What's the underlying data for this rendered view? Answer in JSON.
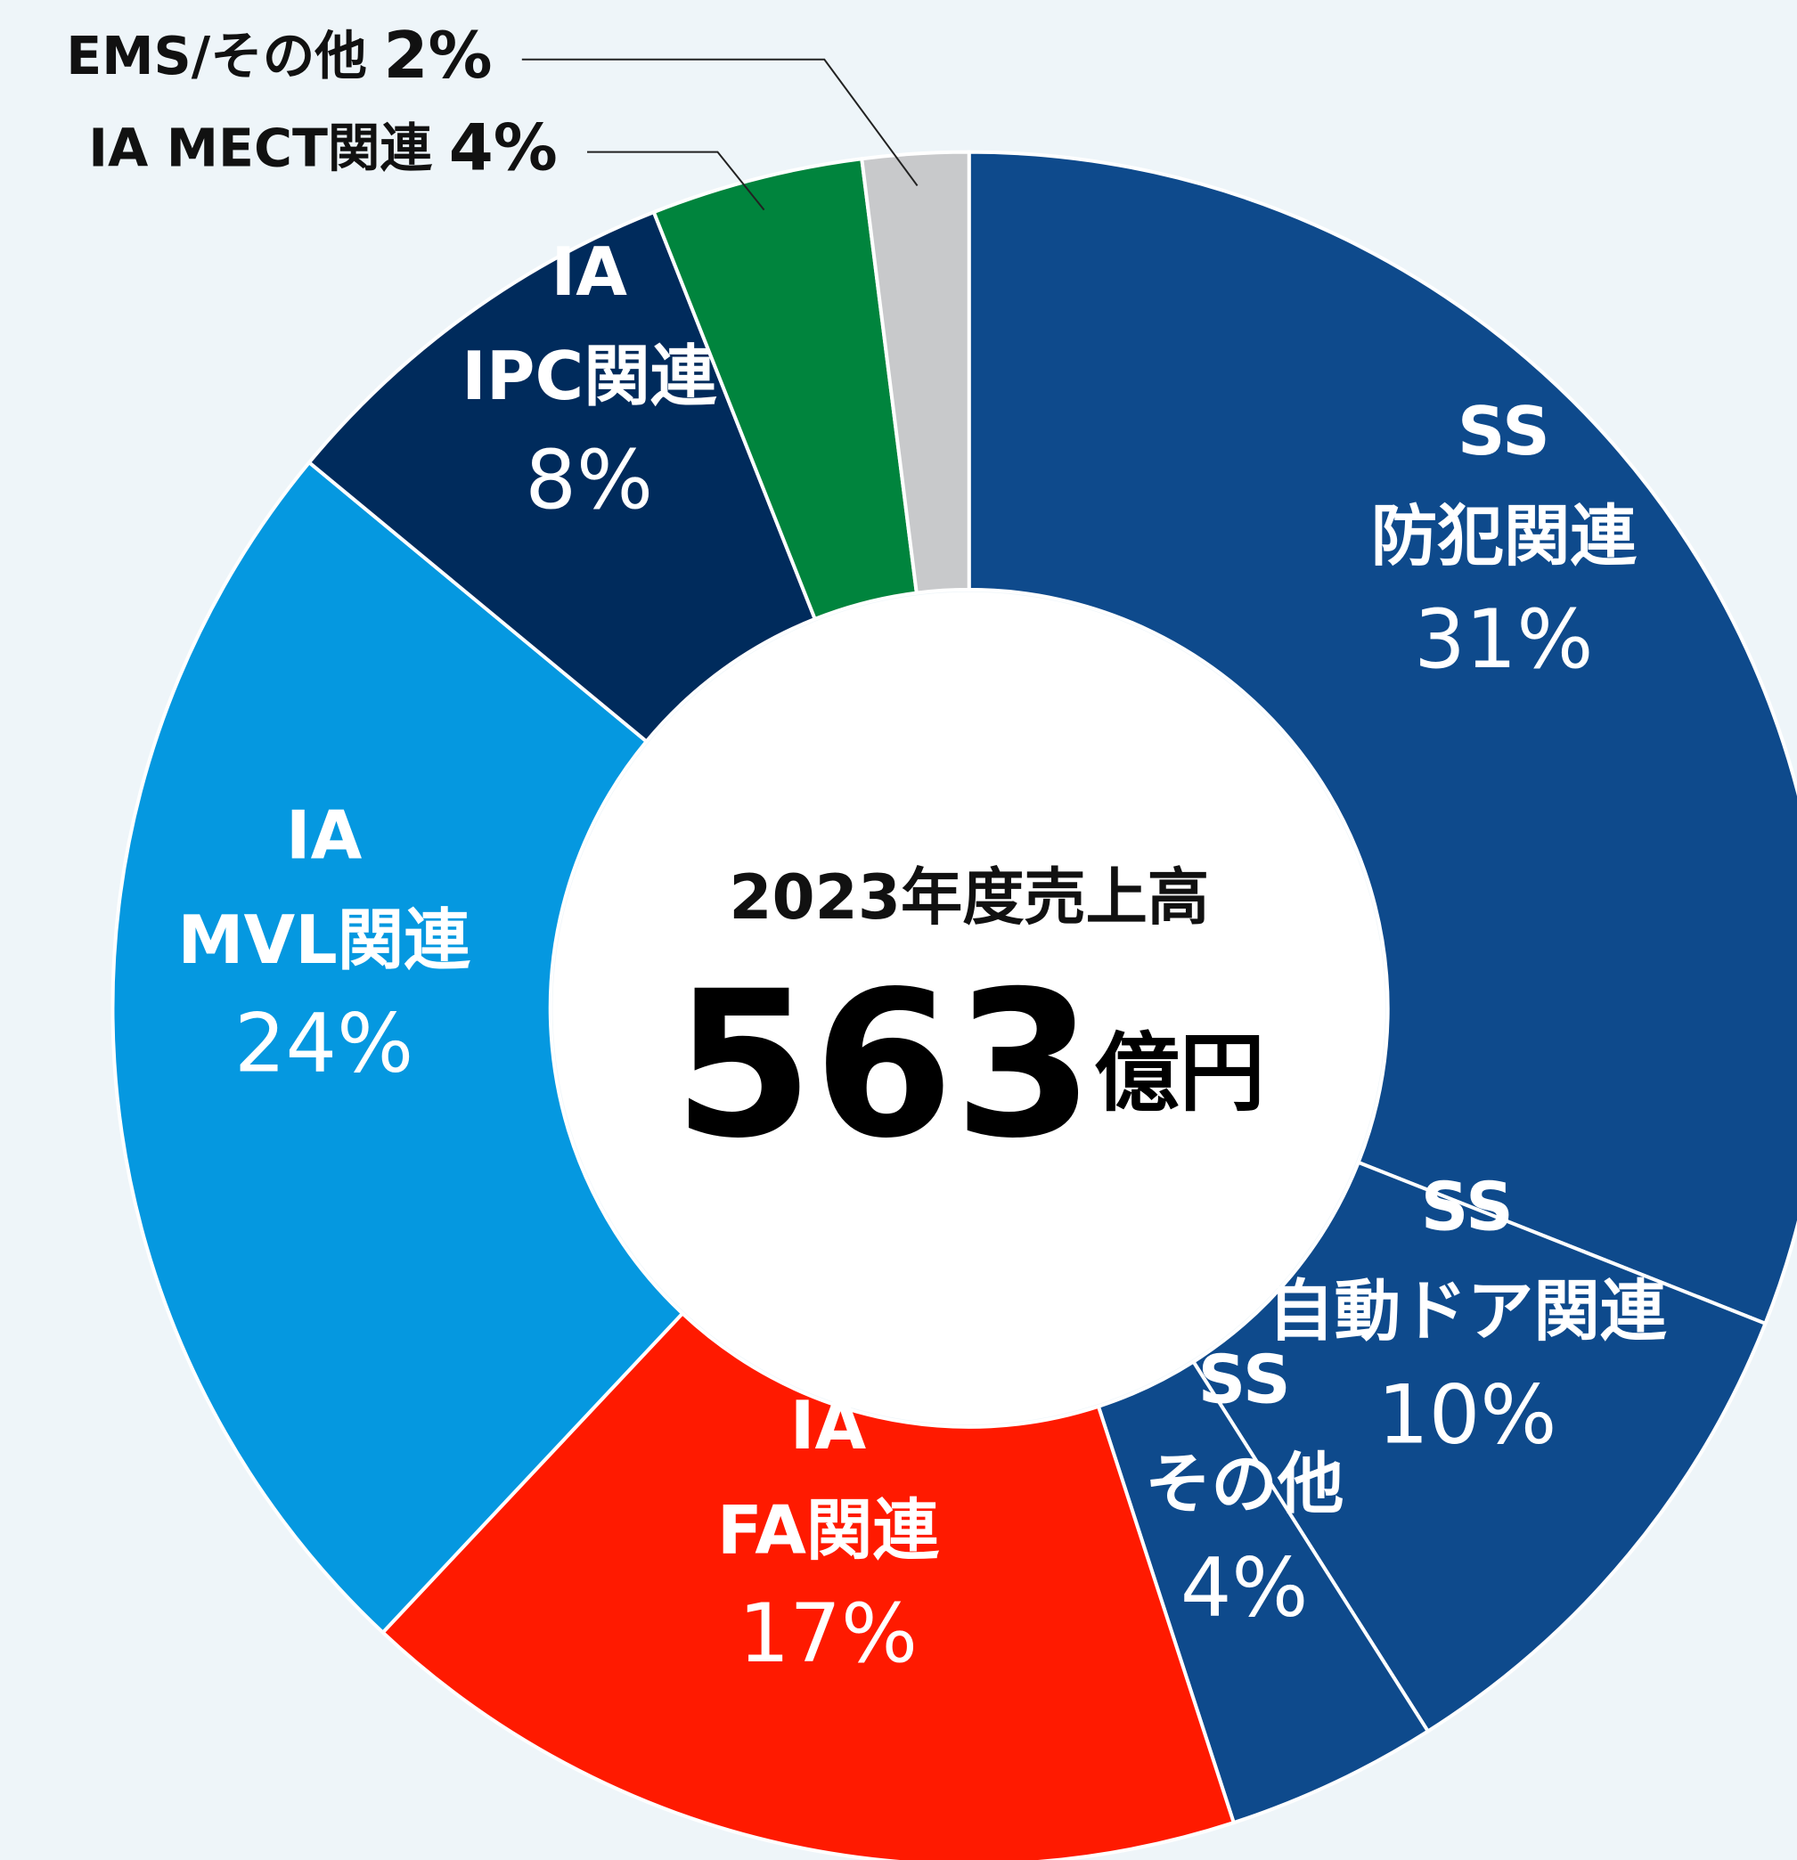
{
  "chart_data": {
    "type": "donut",
    "categories": [
      [
        "SS",
        "防犯関連"
      ],
      [
        "SS",
        "自動ドア関連"
      ],
      [
        "SS",
        "その他"
      ],
      [
        "IA",
        "FA関連"
      ],
      [
        "IA",
        "MVL関連"
      ],
      [
        "IA",
        "IPC関連"
      ],
      [
        "IA MECT関連"
      ],
      [
        "EMS/その他"
      ]
    ],
    "values": [
      31,
      10,
      4,
      17,
      24,
      8,
      4,
      2
    ],
    "value_labels": [
      "31%",
      "10%",
      "4%",
      "17%",
      "24%",
      "8%",
      "4%",
      "2%"
    ],
    "colors": [
      "#0e4a8c",
      "#0e4a8c",
      "#0e4a8c",
      "#ff1a00",
      "#0598e0",
      "#002b5c",
      "#00843d",
      "#c8c9cb"
    ],
    "center_title": "2023年度売上高",
    "total": 563,
    "total_unit": "億円"
  }
}
